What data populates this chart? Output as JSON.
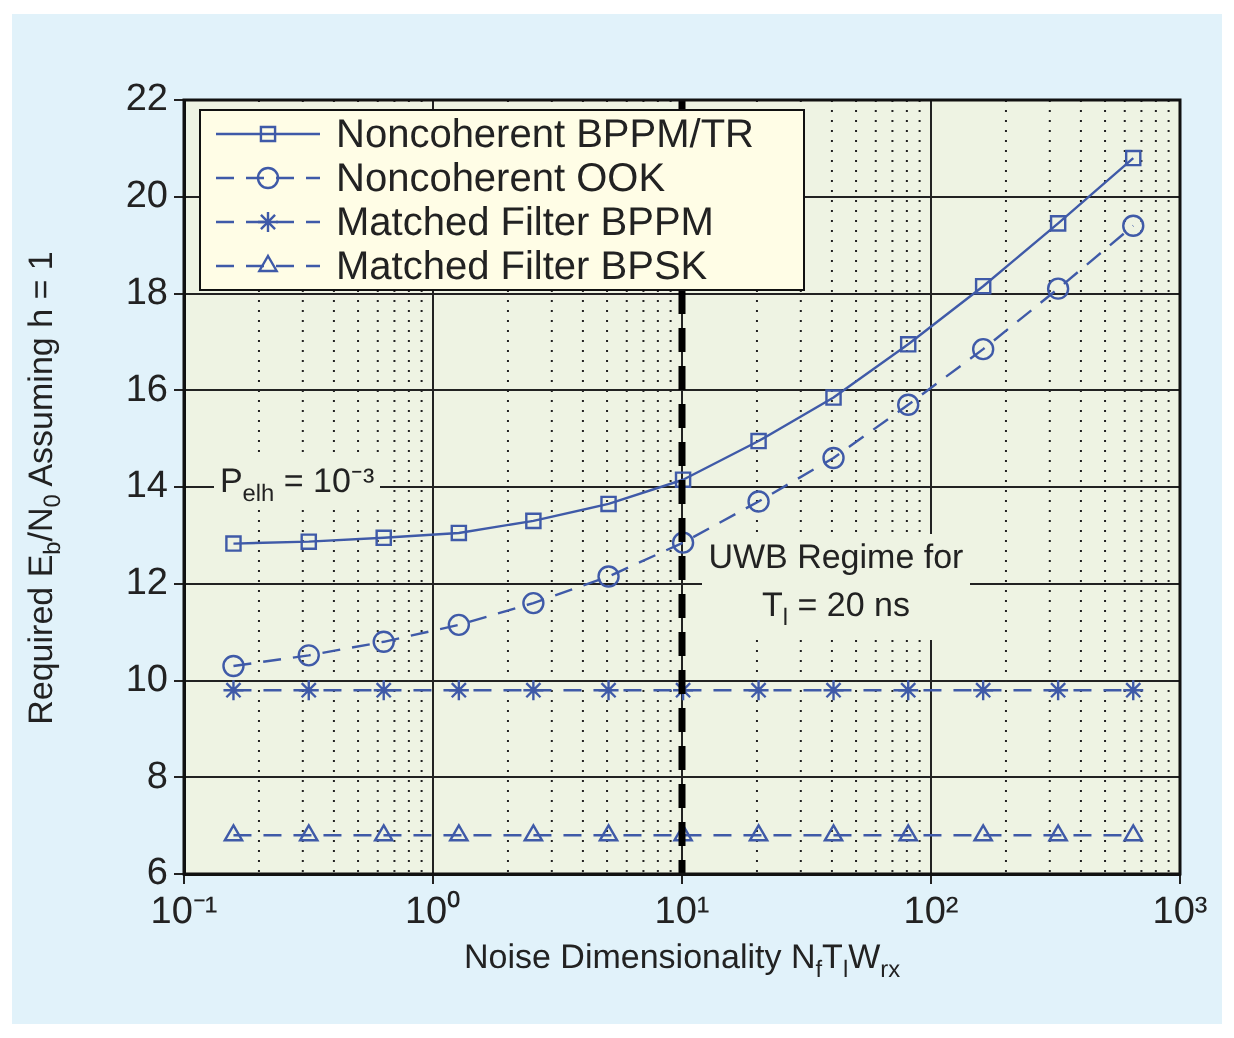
{
  "chart_data": {
    "type": "line",
    "xlabel": "Noise Dimensionality N$_{f}$T$_{l}$W$_{rx}$",
    "ylabel": "Required E$_{b}$/N$_{0}$ Assuming h = 1",
    "x": [
      0.158,
      0.317,
      0.634,
      1.27,
      2.53,
      5.07,
      10.1,
      20.3,
      40.6,
      81,
      162,
      324,
      649
    ],
    "series": [
      {
        "name": "Noncoherent BPPM/TR",
        "color": "#3f5aa8",
        "marker": "square",
        "line_style": "solid",
        "values": [
          12.83,
          12.87,
          12.95,
          13.05,
          13.3,
          13.65,
          14.15,
          14.95,
          15.85,
          16.95,
          18.15,
          19.45,
          20.8
        ]
      },
      {
        "name": "Noncoherent OOK",
        "color": "#3f5aa8",
        "marker": "circle",
        "line_style": "dashed",
        "values": [
          10.3,
          10.52,
          10.8,
          11.15,
          11.6,
          12.15,
          12.85,
          13.7,
          14.6,
          15.7,
          16.85,
          18.1,
          19.4
        ]
      },
      {
        "name": "Matched Filter BPPM",
        "color": "#3f5aa8",
        "marker": "cross",
        "line_style": "dashed",
        "values": [
          9.8,
          9.8,
          9.8,
          9.8,
          9.8,
          9.8,
          9.8,
          9.8,
          9.8,
          9.8,
          9.8,
          9.8,
          9.8
        ]
      },
      {
        "name": "Matched Filter BPSK",
        "color": "#3f5aa8",
        "marker": "triangle",
        "line_style": "dashed",
        "values": [
          6.8,
          6.8,
          6.8,
          6.8,
          6.8,
          6.8,
          6.8,
          6.8,
          6.8,
          6.8,
          6.8,
          6.8,
          6.8
        ]
      }
    ],
    "log": "x",
    "xlim": [
      0.1,
      1000
    ],
    "xticks": [
      {
        "value": 0.1,
        "label": "10⁻¹"
      },
      {
        "value": 1,
        "label": "10⁰"
      },
      {
        "value": 10,
        "label": "10¹"
      },
      {
        "value": 100,
        "label": "10²"
      },
      {
        "value": 1000,
        "label": "10³"
      }
    ],
    "ylim": [
      6,
      22
    ],
    "yticks": [
      6,
      8,
      10,
      12,
      14,
      16,
      18,
      20,
      22
    ],
    "ref_lines": [
      {
        "axis": "x",
        "value": 10,
        "color": "#000000",
        "line_style": "dashed"
      }
    ],
    "annotations": [
      "P$_{elh}$ = 10⁻³",
      "UWB Regime for T$_{l}$ = 20 ns"
    ],
    "grid": true,
    "legend": "top left"
  }
}
